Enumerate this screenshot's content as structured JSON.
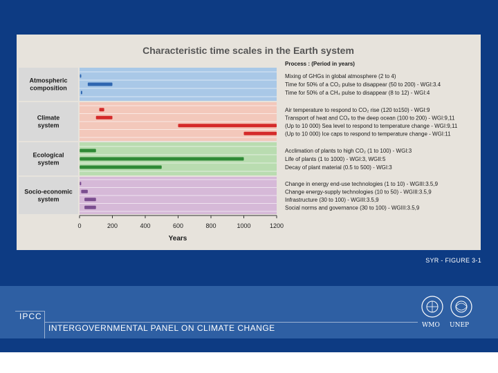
{
  "chart_data": {
    "type": "bar",
    "title": "Characteristic time scales in the Earth system",
    "xlabel": "Years",
    "xlim": [
      0,
      1200
    ],
    "xticks": [
      0,
      200,
      400,
      600,
      800,
      1000,
      1200
    ],
    "process_header": "Process : (Period in years)",
    "groups": [
      {
        "name": "Atmospheric composition",
        "name_lines": [
          "Atmospheric",
          "composition"
        ],
        "band_color": "#a9c8e7",
        "bar_color": "#2f66b0",
        "processes": [
          {
            "label": "Mixing of GHGs in global atmosphere (2 to 4)",
            "range": [
              2,
              4
            ]
          },
          {
            "label": "Time for 50% of a CO₂ pulse to disappear (50 to 200) - WGI:3.4",
            "range": [
              50,
              200
            ]
          },
          {
            "label": "Time for 50% of a CH₄ pulse to disappear (8 to 12) - WGI:4",
            "range": [
              8,
              12
            ]
          }
        ]
      },
      {
        "name": "Climate system",
        "name_lines": [
          "Climate",
          "system"
        ],
        "band_color": "#f3c8bb",
        "bar_color": "#d42a2a",
        "processes": [
          {
            "label": "Air temperature to respond to CO₂ rise (120 to150) - WGI:9",
            "range": [
              120,
              150
            ]
          },
          {
            "label": "Transport of heat and CO₂ to the deep ocean (100 to 200) - WGI:9,11",
            "range": [
              100,
              200
            ]
          },
          {
            "label": "(Up to 10 000) Sea level to respond to temperature change - WGI:9,11",
            "range": [
              600,
              1200
            ]
          },
          {
            "label": "(Up to 10 000) Ice caps to respond to temperature change - WGI:11",
            "range": [
              1000,
              1200
            ]
          }
        ]
      },
      {
        "name": "Ecological system",
        "name_lines": [
          "Ecological",
          "system"
        ],
        "band_color": "#b9dcb0",
        "bar_color": "#2f8a36",
        "processes": [
          {
            "label": "Acclimation of plants to high CO₂ (1 to 100) - WGI:3",
            "range": [
              1,
              100
            ]
          },
          {
            "label": "Life of plants (1 to 1000) - WGI:3, WGII:5",
            "range": [
              1,
              1000
            ]
          },
          {
            "label": "Decay of plant material (0.5 to 500) - WGI:3",
            "range": [
              0.5,
              500
            ]
          }
        ]
      },
      {
        "name": "Socio-economic system",
        "name_lines": [
          "Socio-economic",
          "system"
        ],
        "band_color": "#d6b9d8",
        "bar_color": "#7a4d8f",
        "processes": [
          {
            "label": "Change in energy end-use technologies (1 to 10) - WGIII:3.5,9",
            "range": [
              1,
              10
            ]
          },
          {
            "label": "Change energy-supply technologies (10 to 50) - WGIII:3.5,9",
            "range": [
              10,
              50
            ]
          },
          {
            "label": "Infrastructure (30 to 100) - WGIII:3.5,9",
            "range": [
              30,
              100
            ]
          },
          {
            "label": "Social norms and governance (30 to 100) - WGIII:3.5,9",
            "range": [
              30,
              100
            ]
          }
        ]
      }
    ]
  },
  "figure_caption": "SYR - FIGURE 3-1",
  "footer": {
    "short_name": "IPCC",
    "org_name": "INTERGOVERNMENTAL PANEL ON CLIMATE CHANGE",
    "logo_wmo": "WMO",
    "logo_unep": "UNEP"
  },
  "colors": {
    "slide_bg": "#0d3b83",
    "footer_band": "#2e5fa3",
    "figure_bg": "#e7e3dc"
  }
}
